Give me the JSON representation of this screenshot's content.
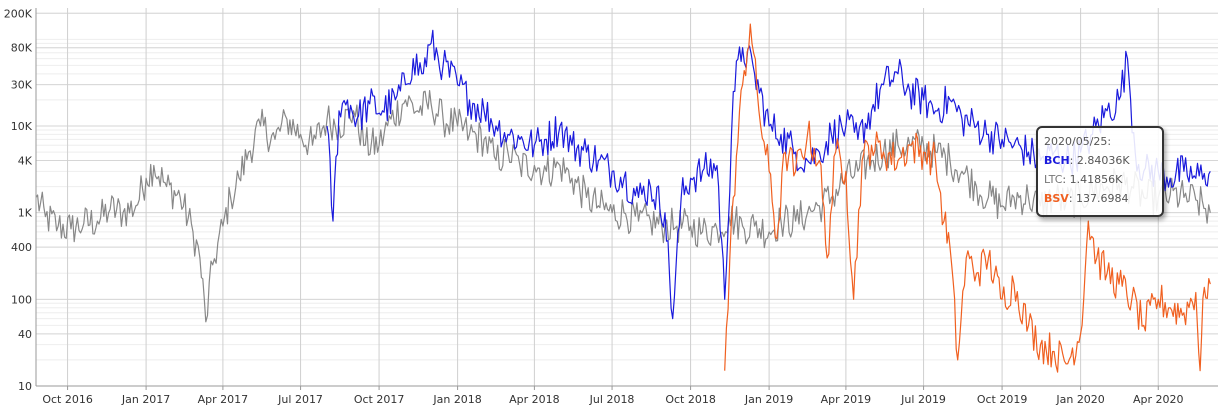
{
  "chart_data": {
    "type": "line",
    "title": "",
    "xlabel": "",
    "ylabel": "",
    "y_scale": "log",
    "ylim": [
      10,
      230000
    ],
    "xlim": [
      "2016-08-25",
      "2020-06-10"
    ],
    "y_ticks": [
      {
        "value": 10,
        "label": "10"
      },
      {
        "value": 40,
        "label": "40"
      },
      {
        "value": 100,
        "label": "100"
      },
      {
        "value": 400,
        "label": "400"
      },
      {
        "value": 1000,
        "label": "1K"
      },
      {
        "value": 4000,
        "label": "4K"
      },
      {
        "value": 10000,
        "label": "10K"
      },
      {
        "value": 30000,
        "label": "30K"
      },
      {
        "value": 80000,
        "label": "80K"
      },
      {
        "value": 200000,
        "label": "200K"
      }
    ],
    "x_ticks": [
      {
        "date": "2016-10-01",
        "label": "Oct 2016"
      },
      {
        "date": "2017-01-01",
        "label": "Jan 2017"
      },
      {
        "date": "2017-04-01",
        "label": "Apr 2017"
      },
      {
        "date": "2017-07-01",
        "label": "Jul 2017"
      },
      {
        "date": "2017-10-01",
        "label": "Oct 2017"
      },
      {
        "date": "2018-01-01",
        "label": "Jan 2018"
      },
      {
        "date": "2018-04-01",
        "label": "Apr 2018"
      },
      {
        "date": "2018-07-01",
        "label": "Jul 2018"
      },
      {
        "date": "2018-10-01",
        "label": "Oct 2018"
      },
      {
        "date": "2019-01-01",
        "label": "Jan 2019"
      },
      {
        "date": "2019-04-01",
        "label": "Apr 2019"
      },
      {
        "date": "2019-07-01",
        "label": "Jul 2019"
      },
      {
        "date": "2019-10-01",
        "label": "Oct 2019"
      },
      {
        "date": "2020-01-01",
        "label": "Jan 2020"
      },
      {
        "date": "2020-04-01",
        "label": "Apr 2020"
      }
    ],
    "grid": true,
    "legend": "none",
    "series": [
      {
        "name": "LTC",
        "color": "#888888",
        "points": [
          [
            "2016-08-25",
            1500
          ],
          [
            "2016-09-05",
            900
          ],
          [
            "2016-09-20",
            700
          ],
          [
            "2016-10-05",
            650
          ],
          [
            "2016-10-20",
            750
          ],
          [
            "2016-11-05",
            800
          ],
          [
            "2016-11-20",
            1100
          ],
          [
            "2016-12-05",
            1000
          ],
          [
            "2016-12-20",
            1200
          ],
          [
            "2017-01-01",
            2500
          ],
          [
            "2017-01-10",
            3500
          ],
          [
            "2017-01-25",
            2000
          ],
          [
            "2017-02-10",
            1500
          ],
          [
            "2017-02-25",
            600
          ],
          [
            "2017-03-05",
            300
          ],
          [
            "2017-03-12",
            55
          ],
          [
            "2017-03-20",
            250
          ],
          [
            "2017-04-01",
            700
          ],
          [
            "2017-04-10",
            1500
          ],
          [
            "2017-04-20",
            2500
          ],
          [
            "2017-05-01",
            5000
          ],
          [
            "2017-05-15",
            10000
          ],
          [
            "2017-06-01",
            7000
          ],
          [
            "2017-06-15",
            12000
          ],
          [
            "2017-07-01",
            8000
          ],
          [
            "2017-07-15",
            6000
          ],
          [
            "2017-08-01",
            12000
          ],
          [
            "2017-08-15",
            10000
          ],
          [
            "2017-09-01",
            15000
          ],
          [
            "2017-09-15",
            6000
          ],
          [
            "2017-10-01",
            6000
          ],
          [
            "2017-10-15",
            12000
          ],
          [
            "2017-11-01",
            20000
          ],
          [
            "2017-11-15",
            15000
          ],
          [
            "2017-12-01",
            18000
          ],
          [
            "2017-12-15",
            12000
          ],
          [
            "2018-01-01",
            10000
          ],
          [
            "2018-01-15",
            8000
          ],
          [
            "2018-02-01",
            7000
          ],
          [
            "2018-02-15",
            4000
          ],
          [
            "2018-03-01",
            5000
          ],
          [
            "2018-03-15",
            3500
          ],
          [
            "2018-04-01",
            3500
          ],
          [
            "2018-04-15",
            3000
          ],
          [
            "2018-05-01",
            3500
          ],
          [
            "2018-05-15",
            2500
          ],
          [
            "2018-06-01",
            1500
          ],
          [
            "2018-06-15",
            1200
          ],
          [
            "2018-07-01",
            1000
          ],
          [
            "2018-07-15",
            1000
          ],
          [
            "2018-08-01",
            800
          ],
          [
            "2018-08-15",
            800
          ],
          [
            "2018-09-01",
            700
          ],
          [
            "2018-09-15",
            700
          ],
          [
            "2018-10-01",
            700
          ],
          [
            "2018-10-15",
            600
          ],
          [
            "2018-11-01",
            650
          ],
          [
            "2018-11-15",
            900
          ],
          [
            "2018-12-01",
            700
          ],
          [
            "2018-12-15",
            700
          ],
          [
            "2019-01-01",
            600
          ],
          [
            "2019-01-15",
            800
          ],
          [
            "2019-02-01",
            800
          ],
          [
            "2019-02-15",
            1000
          ],
          [
            "2019-03-01",
            1200
          ],
          [
            "2019-03-15",
            1500
          ],
          [
            "2019-04-01",
            2500
          ],
          [
            "2019-04-15",
            3000
          ],
          [
            "2019-05-01",
            4000
          ],
          [
            "2019-05-15",
            5000
          ],
          [
            "2019-06-01",
            6000
          ],
          [
            "2019-06-15",
            6000
          ],
          [
            "2019-07-01",
            6000
          ],
          [
            "2019-07-15",
            5000
          ],
          [
            "2019-08-01",
            4000
          ],
          [
            "2019-08-15",
            3000
          ],
          [
            "2019-09-01",
            2000
          ],
          [
            "2019-09-15",
            1500
          ],
          [
            "2019-10-01",
            1200
          ],
          [
            "2019-10-15",
            1500
          ],
          [
            "2019-11-01",
            1500
          ],
          [
            "2019-11-15",
            1200
          ],
          [
            "2019-12-01",
            1500
          ],
          [
            "2019-12-15",
            1300
          ],
          [
            "2020-01-01",
            1500
          ],
          [
            "2020-01-15",
            1800
          ],
          [
            "2020-02-01",
            2000
          ],
          [
            "2020-02-15",
            2200
          ],
          [
            "2020-03-01",
            2000
          ],
          [
            "2020-03-15",
            1500
          ],
          [
            "2020-04-01",
            1500
          ],
          [
            "2020-04-15",
            1600
          ],
          [
            "2020-05-01",
            1500
          ],
          [
            "2020-05-15",
            1400
          ],
          [
            "2020-06-01",
            1000
          ]
        ]
      },
      {
        "name": "BCH",
        "color": "#1a1adc",
        "points": [
          [
            "2017-08-01",
            10000
          ],
          [
            "2017-08-08",
            800
          ],
          [
            "2017-08-15",
            15000
          ],
          [
            "2017-08-25",
            20000
          ],
          [
            "2017-09-05",
            12000
          ],
          [
            "2017-09-20",
            18000
          ],
          [
            "2017-10-05",
            15000
          ],
          [
            "2017-10-20",
            20000
          ],
          [
            "2017-11-01",
            30000
          ],
          [
            "2017-11-10",
            60000
          ],
          [
            "2017-11-20",
            40000
          ],
          [
            "2017-12-01",
            90000
          ],
          [
            "2017-12-15",
            50000
          ],
          [
            "2018-01-01",
            30000
          ],
          [
            "2018-01-15",
            20000
          ],
          [
            "2018-02-01",
            15000
          ],
          [
            "2018-02-15",
            10000
          ],
          [
            "2018-03-01",
            8000
          ],
          [
            "2018-03-15",
            7000
          ],
          [
            "2018-04-01",
            6000
          ],
          [
            "2018-04-15",
            7000
          ],
          [
            "2018-05-01",
            10000
          ],
          [
            "2018-05-15",
            6000
          ],
          [
            "2018-06-01",
            5000
          ],
          [
            "2018-06-15",
            4000
          ],
          [
            "2018-07-01",
            3000
          ],
          [
            "2018-07-15",
            2500
          ],
          [
            "2018-08-01",
            1500
          ],
          [
            "2018-08-15",
            2000
          ],
          [
            "2018-09-01",
            1000
          ],
          [
            "2018-09-10",
            60
          ],
          [
            "2018-09-20",
            1500
          ],
          [
            "2018-10-01",
            2500
          ],
          [
            "2018-10-15",
            3000
          ],
          [
            "2018-11-01",
            3500
          ],
          [
            "2018-11-10",
            100
          ],
          [
            "2018-11-20",
            25000
          ],
          [
            "2018-12-01",
            80000
          ],
          [
            "2018-12-15",
            40000
          ],
          [
            "2019-01-01",
            10000
          ],
          [
            "2019-01-15",
            8000
          ],
          [
            "2019-02-01",
            5000
          ],
          [
            "2019-02-15",
            4000
          ],
          [
            "2019-03-01",
            5000
          ],
          [
            "2019-03-15",
            8000
          ],
          [
            "2019-04-01",
            10000
          ],
          [
            "2019-04-15",
            7000
          ],
          [
            "2019-05-01",
            15000
          ],
          [
            "2019-05-15",
            30000
          ],
          [
            "2019-06-01",
            40000
          ],
          [
            "2019-06-15",
            25000
          ],
          [
            "2019-07-01",
            20000
          ],
          [
            "2019-07-15",
            15000
          ],
          [
            "2019-08-01",
            20000
          ],
          [
            "2019-08-15",
            12000
          ],
          [
            "2019-09-01",
            10000
          ],
          [
            "2019-09-15",
            8000
          ],
          [
            "2019-10-01",
            7000
          ],
          [
            "2019-10-15",
            6000
          ],
          [
            "2019-11-01",
            5000
          ],
          [
            "2019-11-15",
            4000
          ],
          [
            "2019-12-01",
            5000
          ],
          [
            "2019-12-15",
            4000
          ],
          [
            "2020-01-01",
            5000
          ],
          [
            "2020-01-15",
            8000
          ],
          [
            "2020-02-01",
            15000
          ],
          [
            "2020-02-15",
            20000
          ],
          [
            "2020-02-25",
            60000
          ],
          [
            "2020-03-05",
            5000
          ],
          [
            "2020-03-15",
            3000
          ],
          [
            "2020-04-01",
            3000
          ],
          [
            "2020-04-15",
            2500
          ],
          [
            "2020-05-01",
            3000
          ],
          [
            "2020-05-15",
            2500
          ],
          [
            "2020-05-25",
            2840.36
          ],
          [
            "2020-06-01",
            3000
          ]
        ]
      },
      {
        "name": "BSV",
        "color": "#f06020",
        "points": [
          [
            "2018-11-10",
            15
          ],
          [
            "2018-11-20",
            1500
          ],
          [
            "2018-12-01",
            30000
          ],
          [
            "2018-12-10",
            150000
          ],
          [
            "2018-12-20",
            15000
          ],
          [
            "2019-01-01",
            3000
          ],
          [
            "2019-01-10",
            500
          ],
          [
            "2019-01-20",
            5000
          ],
          [
            "2019-02-01",
            3000
          ],
          [
            "2019-02-15",
            8000
          ],
          [
            "2019-03-01",
            4000
          ],
          [
            "2019-03-10",
            300
          ],
          [
            "2019-03-20",
            5000
          ],
          [
            "2019-04-01",
            3000
          ],
          [
            "2019-04-10",
            100
          ],
          [
            "2019-04-20",
            4000
          ],
          [
            "2019-05-01",
            6000
          ],
          [
            "2019-05-15",
            5000
          ],
          [
            "2019-06-01",
            4000
          ],
          [
            "2019-06-15",
            6000
          ],
          [
            "2019-07-01",
            5000
          ],
          [
            "2019-07-15",
            4000
          ],
          [
            "2019-07-25",
            800
          ],
          [
            "2019-08-01",
            400
          ],
          [
            "2019-08-10",
            20
          ],
          [
            "2019-08-20",
            300
          ],
          [
            "2019-09-01",
            200
          ],
          [
            "2019-09-15",
            300
          ],
          [
            "2019-10-01",
            100
          ],
          [
            "2019-10-15",
            150
          ],
          [
            "2019-11-01",
            50
          ],
          [
            "2019-11-15",
            30
          ],
          [
            "2019-12-01",
            25
          ],
          [
            "2019-12-15",
            18
          ],
          [
            "2020-01-01",
            40
          ],
          [
            "2020-01-10",
            800
          ],
          [
            "2020-01-20",
            300
          ],
          [
            "2020-02-01",
            200
          ],
          [
            "2020-02-15",
            150
          ],
          [
            "2020-03-01",
            100
          ],
          [
            "2020-03-15",
            50
          ],
          [
            "2020-04-01",
            100
          ],
          [
            "2020-04-15",
            80
          ],
          [
            "2020-05-01",
            70
          ],
          [
            "2020-05-15",
            120
          ],
          [
            "2020-05-20",
            15
          ],
          [
            "2020-05-25",
            137.6984
          ],
          [
            "2020-06-01",
            150
          ]
        ]
      }
    ]
  },
  "tooltip": {
    "date": "2020/05/25:",
    "rows": [
      {
        "key": "BCH",
        "sep": ": ",
        "value": "2.84036K",
        "color": "#1a1adc"
      },
      {
        "key": "LTC",
        "sep": ": ",
        "value": "1.41856K",
        "color": "#777777"
      },
      {
        "key": "BSV",
        "sep": ": ",
        "value": "137.6984",
        "color": "#f06020"
      }
    ]
  }
}
